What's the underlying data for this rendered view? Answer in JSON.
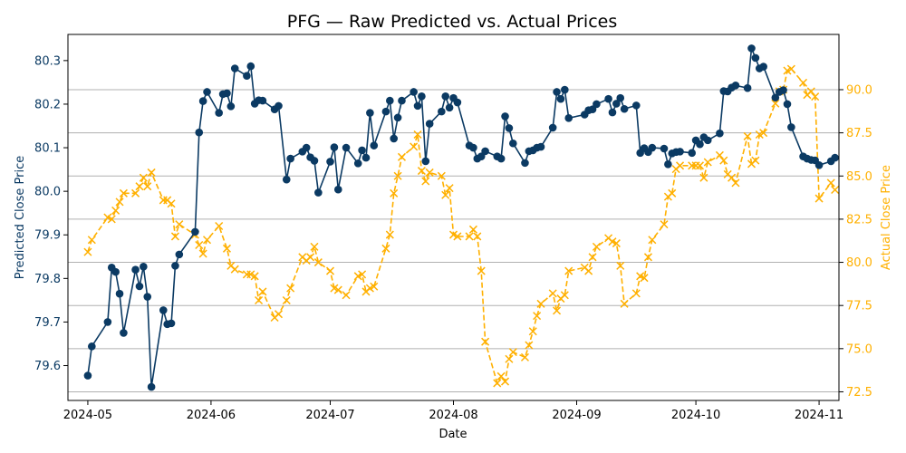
{
  "chart_data": {
    "type": "line",
    "title": "PFG — Raw Predicted vs. Actual Prices",
    "xlabel": "Date",
    "ylabel_left": "Predicted Close Price",
    "ylabel_right": "Actual Close Price",
    "xlim": [
      "2024-04-26",
      "2024-11-06"
    ],
    "ylim_left": [
      79.52,
      80.36
    ],
    "ylim_right": [
      72.0,
      93.2
    ],
    "x_ticks": [
      "2024-05",
      "2024-06",
      "2024-07",
      "2024-08",
      "2024-09",
      "2024-10",
      "2024-11"
    ],
    "y_ticks_left": [
      79.6,
      79.7,
      79.8,
      79.9,
      80.0,
      80.1,
      80.2,
      80.3
    ],
    "y_ticks_right": [
      72.5,
      75.0,
      77.5,
      80.0,
      82.5,
      85.0,
      87.5,
      90.0
    ],
    "grid": "horizontal (right axis)",
    "colors": {
      "predicted": "#0b3a63",
      "actual": "#ffb000",
      "grid": "#b0b0b0"
    },
    "series": [
      {
        "axis": "left",
        "style": "solid line, circle markers",
        "points": [
          [
            "2024-05-01",
            79.577
          ],
          [
            "2024-05-02",
            79.644
          ],
          [
            "2024-05-06",
            79.7
          ],
          [
            "2024-05-07",
            79.825
          ],
          [
            "2024-05-08",
            79.815
          ],
          [
            "2024-05-09",
            79.765
          ],
          [
            "2024-05-10",
            79.675
          ],
          [
            "2024-05-13",
            79.82
          ],
          [
            "2024-05-14",
            79.782
          ],
          [
            "2024-05-15",
            79.827
          ],
          [
            "2024-05-16",
            79.758
          ],
          [
            "2024-05-17",
            79.551
          ],
          [
            "2024-05-20",
            79.727
          ],
          [
            "2024-05-21",
            79.695
          ],
          [
            "2024-05-22",
            79.697
          ],
          [
            "2024-05-23",
            79.829
          ],
          [
            "2024-05-24",
            79.855
          ],
          [
            "2024-05-28",
            79.907
          ],
          [
            "2024-05-29",
            80.135
          ],
          [
            "2024-05-30",
            80.207
          ],
          [
            "2024-05-31",
            80.228
          ],
          [
            "2024-06-03",
            80.18
          ],
          [
            "2024-06-04",
            80.223
          ],
          [
            "2024-06-05",
            80.225
          ],
          [
            "2024-06-06",
            80.195
          ],
          [
            "2024-06-07",
            80.282
          ],
          [
            "2024-06-10",
            80.265
          ],
          [
            "2024-06-11",
            80.287
          ],
          [
            "2024-06-12",
            80.201
          ],
          [
            "2024-06-13",
            80.209
          ],
          [
            "2024-06-14",
            80.208
          ],
          [
            "2024-06-17",
            80.188
          ],
          [
            "2024-06-18",
            80.196
          ],
          [
            "2024-06-20",
            80.027
          ],
          [
            "2024-06-21",
            80.075
          ],
          [
            "2024-06-24",
            80.091
          ],
          [
            "2024-06-25",
            80.1
          ],
          [
            "2024-06-26",
            80.078
          ],
          [
            "2024-06-27",
            80.07
          ],
          [
            "2024-06-28",
            79.997
          ],
          [
            "2024-07-01",
            80.068
          ],
          [
            "2024-07-02",
            80.101
          ],
          [
            "2024-07-03",
            80.004
          ],
          [
            "2024-07-05",
            80.1
          ],
          [
            "2024-07-08",
            80.064
          ],
          [
            "2024-07-09",
            80.094
          ],
          [
            "2024-07-10",
            80.077
          ],
          [
            "2024-07-11",
            80.18
          ],
          [
            "2024-07-12",
            80.105
          ],
          [
            "2024-07-15",
            80.183
          ],
          [
            "2024-07-16",
            80.208
          ],
          [
            "2024-07-17",
            80.121
          ],
          [
            "2024-07-18",
            80.169
          ],
          [
            "2024-07-19",
            80.208
          ],
          [
            "2024-07-22",
            80.228
          ],
          [
            "2024-07-23",
            80.196
          ],
          [
            "2024-07-24",
            80.218
          ],
          [
            "2024-07-25",
            80.069
          ],
          [
            "2024-07-26",
            80.155
          ],
          [
            "2024-07-29",
            80.183
          ],
          [
            "2024-07-30",
            80.218
          ],
          [
            "2024-07-31",
            80.192
          ],
          [
            "2024-08-01",
            80.214
          ],
          [
            "2024-08-02",
            80.204
          ],
          [
            "2024-08-05",
            80.105
          ],
          [
            "2024-08-06",
            80.1
          ],
          [
            "2024-08-07",
            80.075
          ],
          [
            "2024-08-08",
            80.08
          ],
          [
            "2024-08-09",
            80.092
          ],
          [
            "2024-08-12",
            80.08
          ],
          [
            "2024-08-13",
            80.075
          ],
          [
            "2024-08-14",
            80.172
          ],
          [
            "2024-08-15",
            80.145
          ],
          [
            "2024-08-16",
            80.11
          ],
          [
            "2024-08-19",
            80.065
          ],
          [
            "2024-08-20",
            80.092
          ],
          [
            "2024-08-21",
            80.094
          ],
          [
            "2024-08-22",
            80.1
          ],
          [
            "2024-08-23",
            80.102
          ],
          [
            "2024-08-26",
            80.146
          ],
          [
            "2024-08-27",
            80.228
          ],
          [
            "2024-08-28",
            80.212
          ],
          [
            "2024-08-29",
            80.233
          ],
          [
            "2024-08-30",
            80.168
          ],
          [
            "2024-09-03",
            80.176
          ],
          [
            "2024-09-04",
            80.186
          ],
          [
            "2024-09-05",
            80.188
          ],
          [
            "2024-09-06",
            80.2
          ],
          [
            "2024-09-09",
            80.212
          ],
          [
            "2024-09-10",
            80.181
          ],
          [
            "2024-09-11",
            80.201
          ],
          [
            "2024-09-12",
            80.214
          ],
          [
            "2024-09-13",
            80.189
          ],
          [
            "2024-09-16",
            80.197
          ],
          [
            "2024-09-17",
            80.088
          ],
          [
            "2024-09-18",
            80.099
          ],
          [
            "2024-09-19",
            80.09
          ],
          [
            "2024-09-20",
            80.1
          ],
          [
            "2024-09-23",
            80.098
          ],
          [
            "2024-09-24",
            80.062
          ],
          [
            "2024-09-25",
            80.087
          ],
          [
            "2024-09-26",
            80.09
          ],
          [
            "2024-09-27",
            80.091
          ],
          [
            "2024-09-30",
            80.088
          ],
          [
            "2024-10-01",
            80.117
          ],
          [
            "2024-10-02",
            80.108
          ],
          [
            "2024-10-03",
            80.124
          ],
          [
            "2024-10-04",
            80.117
          ],
          [
            "2024-10-07",
            80.133
          ],
          [
            "2024-10-08",
            80.23
          ],
          [
            "2024-10-09",
            80.229
          ],
          [
            "2024-10-10",
            80.238
          ],
          [
            "2024-10-11",
            80.243
          ],
          [
            "2024-10-14",
            80.237
          ],
          [
            "2024-10-15",
            80.328
          ],
          [
            "2024-10-16",
            80.306
          ],
          [
            "2024-10-17",
            80.282
          ],
          [
            "2024-10-18",
            80.286
          ],
          [
            "2024-10-21",
            80.215
          ],
          [
            "2024-10-22",
            80.228
          ],
          [
            "2024-10-23",
            80.232
          ],
          [
            "2024-10-24",
            80.2
          ],
          [
            "2024-10-25",
            80.147
          ],
          [
            "2024-10-28",
            80.08
          ],
          [
            "2024-10-29",
            80.075
          ],
          [
            "2024-10-30",
            80.072
          ],
          [
            "2024-10-31",
            80.071
          ],
          [
            "2024-11-01",
            80.06
          ],
          [
            "2024-11-04",
            80.069
          ],
          [
            "2024-11-05",
            80.077
          ]
        ]
      },
      {
        "axis": "right",
        "style": "dashed line, x markers",
        "points": [
          [
            "2024-05-01",
            80.6
          ],
          [
            "2024-05-02",
            81.3
          ],
          [
            "2024-05-06",
            82.6
          ],
          [
            "2024-05-07",
            82.5
          ],
          [
            "2024-05-08",
            83.0
          ],
          [
            "2024-05-09",
            83.5
          ],
          [
            "2024-05-10",
            84.0
          ],
          [
            "2024-05-13",
            84.0
          ],
          [
            "2024-05-14",
            84.4
          ],
          [
            "2024-05-15",
            84.9
          ],
          [
            "2024-05-16",
            84.4
          ],
          [
            "2024-05-17",
            85.2
          ],
          [
            "2024-05-20",
            83.6
          ],
          [
            "2024-05-21",
            83.6
          ],
          [
            "2024-05-22",
            83.4
          ],
          [
            "2024-05-23",
            81.5
          ],
          [
            "2024-05-24",
            82.2
          ],
          [
            "2024-05-28",
            81.6
          ],
          [
            "2024-05-29",
            81.0
          ],
          [
            "2024-05-30",
            80.5
          ],
          [
            "2024-05-31",
            81.3
          ],
          [
            "2024-06-03",
            82.1
          ],
          [
            "2024-06-05",
            80.8
          ],
          [
            "2024-06-06",
            79.8
          ],
          [
            "2024-06-07",
            79.6
          ],
          [
            "2024-06-10",
            79.3
          ],
          [
            "2024-06-11",
            79.3
          ],
          [
            "2024-06-12",
            79.2
          ],
          [
            "2024-06-13",
            77.8
          ],
          [
            "2024-06-14",
            78.3
          ],
          [
            "2024-06-17",
            76.8
          ],
          [
            "2024-06-18",
            77.0
          ],
          [
            "2024-06-20",
            77.8
          ],
          [
            "2024-06-21",
            78.5
          ],
          [
            "2024-06-24",
            80.3
          ],
          [
            "2024-06-25",
            80.1
          ],
          [
            "2024-06-26",
            80.3
          ],
          [
            "2024-06-27",
            80.9
          ],
          [
            "2024-06-28",
            80.0
          ],
          [
            "2024-07-01",
            79.5
          ],
          [
            "2024-07-02",
            78.5
          ],
          [
            "2024-07-03",
            78.4
          ],
          [
            "2024-07-05",
            78.1
          ],
          [
            "2024-07-08",
            79.2
          ],
          [
            "2024-07-09",
            79.3
          ],
          [
            "2024-07-10",
            78.3
          ],
          [
            "2024-07-11",
            78.5
          ],
          [
            "2024-07-12",
            78.6
          ],
          [
            "2024-07-15",
            80.8
          ],
          [
            "2024-07-16",
            81.6
          ],
          [
            "2024-07-17",
            84.0
          ],
          [
            "2024-07-18",
            85.0
          ],
          [
            "2024-07-19",
            86.1
          ],
          [
            "2024-07-22",
            86.7
          ],
          [
            "2024-07-23",
            87.4
          ],
          [
            "2024-07-24",
            85.3
          ],
          [
            "2024-07-25",
            84.7
          ],
          [
            "2024-07-26",
            85.2
          ],
          [
            "2024-07-29",
            85.0
          ],
          [
            "2024-07-30",
            83.9
          ],
          [
            "2024-07-31",
            84.3
          ],
          [
            "2024-08-01",
            81.6
          ],
          [
            "2024-08-02",
            81.5
          ],
          [
            "2024-08-05",
            81.5
          ],
          [
            "2024-08-06",
            81.9
          ],
          [
            "2024-08-07",
            81.5
          ],
          [
            "2024-08-08",
            79.5
          ],
          [
            "2024-08-09",
            75.4
          ],
          [
            "2024-08-12",
            73.0
          ],
          [
            "2024-08-13",
            73.4
          ],
          [
            "2024-08-14",
            73.1
          ],
          [
            "2024-08-15",
            74.4
          ],
          [
            "2024-08-16",
            74.8
          ],
          [
            "2024-08-19",
            74.5
          ],
          [
            "2024-08-20",
            75.2
          ],
          [
            "2024-08-21",
            76.0
          ],
          [
            "2024-08-22",
            76.9
          ],
          [
            "2024-08-23",
            77.6
          ],
          [
            "2024-08-26",
            78.2
          ],
          [
            "2024-08-27",
            77.2
          ],
          [
            "2024-08-28",
            77.9
          ],
          [
            "2024-08-29",
            78.1
          ],
          [
            "2024-08-30",
            79.5
          ],
          [
            "2024-09-03",
            79.7
          ],
          [
            "2024-09-04",
            79.5
          ],
          [
            "2024-09-05",
            80.3
          ],
          [
            "2024-09-06",
            80.9
          ],
          [
            "2024-09-09",
            81.4
          ],
          [
            "2024-09-10",
            81.2
          ],
          [
            "2024-09-11",
            81.1
          ],
          [
            "2024-09-12",
            79.8
          ],
          [
            "2024-09-13",
            77.6
          ],
          [
            "2024-09-16",
            78.2
          ],
          [
            "2024-09-17",
            79.2
          ],
          [
            "2024-09-18",
            79.1
          ],
          [
            "2024-09-19",
            80.3
          ],
          [
            "2024-09-20",
            81.3
          ],
          [
            "2024-09-23",
            82.2
          ],
          [
            "2024-09-24",
            83.8
          ],
          [
            "2024-09-25",
            84.0
          ],
          [
            "2024-09-26",
            85.4
          ],
          [
            "2024-09-27",
            85.6
          ],
          [
            "2024-09-30",
            85.6
          ],
          [
            "2024-10-01",
            85.6
          ],
          [
            "2024-10-02",
            85.6
          ],
          [
            "2024-10-03",
            84.9
          ],
          [
            "2024-10-04",
            85.8
          ],
          [
            "2024-10-07",
            86.2
          ],
          [
            "2024-10-08",
            85.9
          ],
          [
            "2024-10-09",
            85.1
          ],
          [
            "2024-10-10",
            84.9
          ],
          [
            "2024-10-11",
            84.6
          ],
          [
            "2024-10-14",
            87.3
          ],
          [
            "2024-10-15",
            85.7
          ],
          [
            "2024-10-16",
            85.9
          ],
          [
            "2024-10-17",
            87.4
          ],
          [
            "2024-10-18",
            87.5
          ],
          [
            "2024-10-21",
            89.2
          ],
          [
            "2024-10-22",
            89.9
          ],
          [
            "2024-10-23",
            90.0
          ],
          [
            "2024-10-24",
            91.1
          ],
          [
            "2024-10-25",
            91.2
          ],
          [
            "2024-10-28",
            90.4
          ],
          [
            "2024-10-29",
            89.7
          ],
          [
            "2024-10-30",
            89.9
          ],
          [
            "2024-10-31",
            89.6
          ],
          [
            "2024-11-01",
            83.7
          ],
          [
            "2024-11-04",
            84.6
          ],
          [
            "2024-11-05",
            84.2
          ]
        ]
      }
    ]
  }
}
